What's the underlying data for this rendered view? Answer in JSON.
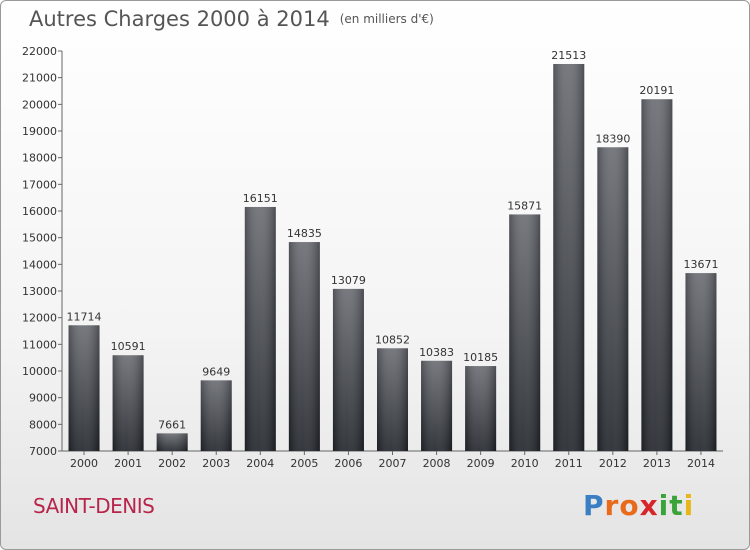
{
  "header": {
    "title": "Autres Charges 2000 à 2014",
    "subtitle": "(en milliers d'€)"
  },
  "footer": {
    "place": "SAINT-DENIS",
    "logo": {
      "letters": [
        "P",
        "r",
        "o",
        "x",
        "i",
        "t",
        "i"
      ],
      "colors": [
        "#3a7fc4",
        "#e86a1a",
        "#e86a1a",
        "#d6262b",
        "#3aa33a",
        "#3aa33a",
        "#e8b51a"
      ]
    }
  },
  "chart_data": {
    "type": "bar",
    "title": "Autres Charges 2000 à 2014",
    "categories": [
      "2000",
      "2001",
      "2002",
      "2003",
      "2004",
      "2005",
      "2006",
      "2007",
      "2008",
      "2009",
      "2010",
      "2011",
      "2012",
      "2013",
      "2014"
    ],
    "values": [
      11714,
      10591,
      7661,
      9649,
      16151,
      14835,
      13079,
      10852,
      10383,
      10185,
      15871,
      21513,
      18390,
      20191,
      13671
    ],
    "ylim": [
      7000,
      22000
    ],
    "yticks": [
      7000,
      8000,
      9000,
      10000,
      11000,
      12000,
      13000,
      14000,
      15000,
      16000,
      17000,
      18000,
      19000,
      20000,
      21000,
      22000
    ],
    "grid": false,
    "bar_color": "#3a3d44"
  }
}
